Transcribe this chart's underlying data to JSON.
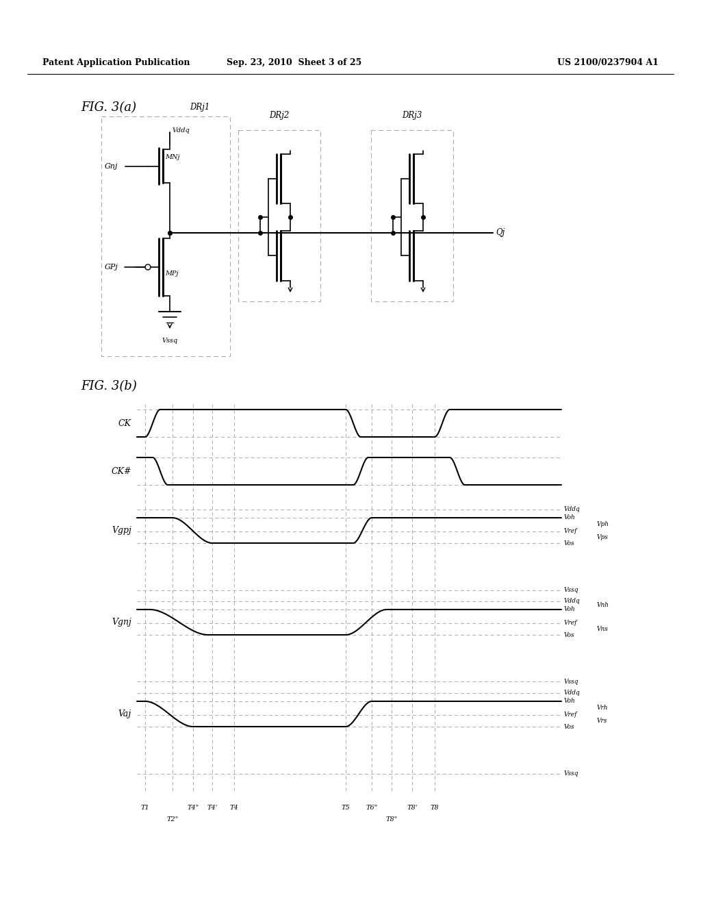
{
  "header_left": "Patent Application Publication",
  "header_center": "Sep. 23, 2010  Sheet 3 of 25",
  "header_right": "US 2100/0237904 A1",
  "fig_a_label": "FIG. 3(a)",
  "fig_b_label": "FIG. 3(b)",
  "background_color": "#ffffff"
}
